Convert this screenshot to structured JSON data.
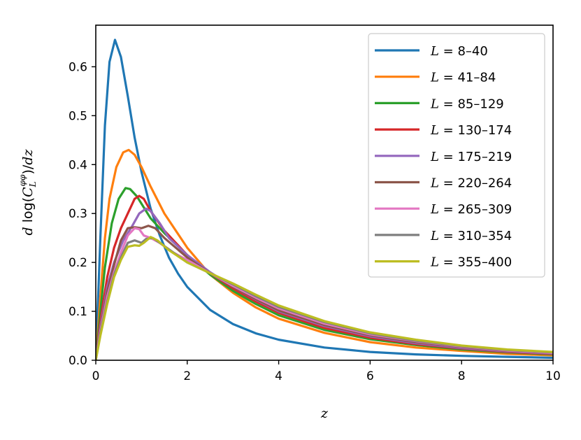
{
  "chart_data": {
    "type": "line",
    "xlabel": "z",
    "ylabel": "d log(C_L^{φφ})/dz",
    "xlim": [
      0,
      10
    ],
    "ylim": [
      0,
      0.685
    ],
    "x_ticks": [
      "0",
      "2",
      "4",
      "6",
      "8",
      "10"
    ],
    "y_ticks": [
      "0.0",
      "0.1",
      "0.2",
      "0.3",
      "0.4",
      "0.5",
      "0.6"
    ],
    "legend_position": "top-right",
    "series": [
      {
        "name": "L = 8–40",
        "color": "#1f77b4",
        "points": [
          [
            0,
            0
          ],
          [
            0.1,
            0.25
          ],
          [
            0.2,
            0.48
          ],
          [
            0.3,
            0.61
          ],
          [
            0.42,
            0.655
          ],
          [
            0.55,
            0.62
          ],
          [
            0.7,
            0.54
          ],
          [
            0.85,
            0.455
          ],
          [
            1.0,
            0.385
          ],
          [
            1.2,
            0.31
          ],
          [
            1.4,
            0.255
          ],
          [
            1.6,
            0.21
          ],
          [
            1.8,
            0.177
          ],
          [
            2,
            0.15
          ],
          [
            2.5,
            0.103
          ],
          [
            3,
            0.074
          ],
          [
            3.5,
            0.055
          ],
          [
            4,
            0.042
          ],
          [
            5,
            0.026
          ],
          [
            6,
            0.017
          ],
          [
            7,
            0.012
          ],
          [
            8,
            0.009
          ],
          [
            9,
            0.007
          ],
          [
            10,
            0.005
          ]
        ]
      },
      {
        "name": "L = 41–84",
        "color": "#ff7f0e",
        "points": [
          [
            0,
            0
          ],
          [
            0.1,
            0.13
          ],
          [
            0.2,
            0.25
          ],
          [
            0.3,
            0.33
          ],
          [
            0.45,
            0.395
          ],
          [
            0.6,
            0.425
          ],
          [
            0.72,
            0.43
          ],
          [
            0.85,
            0.42
          ],
          [
            1.0,
            0.395
          ],
          [
            1.2,
            0.355
          ],
          [
            1.5,
            0.3
          ],
          [
            2,
            0.23
          ],
          [
            2.5,
            0.175
          ],
          [
            3,
            0.138
          ],
          [
            3.5,
            0.108
          ],
          [
            4,
            0.085
          ],
          [
            5,
            0.056
          ],
          [
            6,
            0.037
          ],
          [
            7,
            0.026
          ],
          [
            8,
            0.019
          ],
          [
            9,
            0.013
          ],
          [
            10,
            0.01
          ]
        ]
      },
      {
        "name": "L = 85–129",
        "color": "#2ca02c",
        "points": [
          [
            0,
            0
          ],
          [
            0.1,
            0.1
          ],
          [
            0.2,
            0.19
          ],
          [
            0.35,
            0.28
          ],
          [
            0.5,
            0.33
          ],
          [
            0.65,
            0.352
          ],
          [
            0.75,
            0.35
          ],
          [
            0.9,
            0.335
          ],
          [
            1.0,
            0.32
          ],
          [
            1.2,
            0.29
          ],
          [
            1.5,
            0.26
          ],
          [
            2,
            0.215
          ],
          [
            2.5,
            0.175
          ],
          [
            3,
            0.142
          ],
          [
            3.5,
            0.115
          ],
          [
            4,
            0.092
          ],
          [
            5,
            0.062
          ],
          [
            6,
            0.043
          ],
          [
            7,
            0.031
          ],
          [
            8,
            0.022
          ],
          [
            9,
            0.016
          ],
          [
            10,
            0.012
          ]
        ]
      },
      {
        "name": "L = 130–174",
        "color": "#d62728",
        "points": [
          [
            0,
            0
          ],
          [
            0.1,
            0.08
          ],
          [
            0.25,
            0.17
          ],
          [
            0.4,
            0.23
          ],
          [
            0.55,
            0.27
          ],
          [
            0.7,
            0.3
          ],
          [
            0.85,
            0.33
          ],
          [
            0.95,
            0.336
          ],
          [
            1.05,
            0.33
          ],
          [
            1.2,
            0.305
          ],
          [
            1.5,
            0.265
          ],
          [
            2,
            0.215
          ],
          [
            2.5,
            0.178
          ],
          [
            3,
            0.147
          ],
          [
            3.5,
            0.12
          ],
          [
            4,
            0.097
          ],
          [
            5,
            0.066
          ],
          [
            6,
            0.046
          ],
          [
            7,
            0.033
          ],
          [
            8,
            0.024
          ],
          [
            9,
            0.017
          ],
          [
            10,
            0.013
          ]
        ]
      },
      {
        "name": "L = 175–219",
        "color": "#9467bd",
        "points": [
          [
            0,
            0
          ],
          [
            0.1,
            0.07
          ],
          [
            0.25,
            0.15
          ],
          [
            0.4,
            0.2
          ],
          [
            0.6,
            0.245
          ],
          [
            0.8,
            0.275
          ],
          [
            0.95,
            0.3
          ],
          [
            1.1,
            0.31
          ],
          [
            1.2,
            0.305
          ],
          [
            1.4,
            0.28
          ],
          [
            1.6,
            0.25
          ],
          [
            2,
            0.215
          ],
          [
            2.5,
            0.18
          ],
          [
            3,
            0.15
          ],
          [
            3.5,
            0.124
          ],
          [
            4,
            0.1
          ],
          [
            5,
            0.07
          ],
          [
            6,
            0.049
          ],
          [
            7,
            0.035
          ],
          [
            8,
            0.025
          ],
          [
            9,
            0.018
          ],
          [
            10,
            0.014
          ]
        ]
      },
      {
        "name": "L = 220–264",
        "color": "#8c564b",
        "points": [
          [
            0,
            0
          ],
          [
            0.1,
            0.065
          ],
          [
            0.25,
            0.14
          ],
          [
            0.4,
            0.195
          ],
          [
            0.55,
            0.245
          ],
          [
            0.7,
            0.27
          ],
          [
            0.85,
            0.272
          ],
          [
            1.0,
            0.27
          ],
          [
            1.15,
            0.275
          ],
          [
            1.3,
            0.27
          ],
          [
            1.5,
            0.25
          ],
          [
            2,
            0.21
          ],
          [
            2.5,
            0.178
          ],
          [
            3,
            0.15
          ],
          [
            3.5,
            0.125
          ],
          [
            4,
            0.102
          ],
          [
            5,
            0.072
          ],
          [
            6,
            0.051
          ],
          [
            7,
            0.037
          ],
          [
            8,
            0.027
          ],
          [
            9,
            0.019
          ],
          [
            10,
            0.015
          ]
        ]
      },
      {
        "name": "L = 265–309",
        "color": "#e377c2",
        "points": [
          [
            0,
            0
          ],
          [
            0.1,
            0.06
          ],
          [
            0.25,
            0.13
          ],
          [
            0.4,
            0.18
          ],
          [
            0.55,
            0.22
          ],
          [
            0.7,
            0.255
          ],
          [
            0.85,
            0.27
          ],
          [
            0.95,
            0.268
          ],
          [
            1.05,
            0.255
          ],
          [
            1.2,
            0.25
          ],
          [
            1.4,
            0.24
          ],
          [
            1.7,
            0.22
          ],
          [
            2,
            0.205
          ],
          [
            2.5,
            0.178
          ],
          [
            3,
            0.152
          ],
          [
            3.5,
            0.128
          ],
          [
            4,
            0.106
          ],
          [
            5,
            0.075
          ],
          [
            6,
            0.053
          ],
          [
            7,
            0.039
          ],
          [
            8,
            0.028
          ],
          [
            9,
            0.02
          ],
          [
            10,
            0.015
          ]
        ]
      },
      {
        "name": "L = 310–354",
        "color": "#7f7f7f",
        "points": [
          [
            0,
            0
          ],
          [
            0.1,
            0.055
          ],
          [
            0.25,
            0.12
          ],
          [
            0.4,
            0.175
          ],
          [
            0.55,
            0.21
          ],
          [
            0.7,
            0.24
          ],
          [
            0.85,
            0.245
          ],
          [
            1.0,
            0.24
          ],
          [
            1.1,
            0.248
          ],
          [
            1.25,
            0.25
          ],
          [
            1.4,
            0.24
          ],
          [
            1.7,
            0.22
          ],
          [
            2,
            0.2
          ],
          [
            2.5,
            0.178
          ],
          [
            3,
            0.155
          ],
          [
            3.5,
            0.131
          ],
          [
            4,
            0.109
          ],
          [
            5,
            0.078
          ],
          [
            6,
            0.055
          ],
          [
            7,
            0.04
          ],
          [
            8,
            0.029
          ],
          [
            9,
            0.021
          ],
          [
            10,
            0.016
          ]
        ]
      },
      {
        "name": "L = 355–400",
        "color": "#bcbd22",
        "points": [
          [
            0,
            0
          ],
          [
            0.1,
            0.05
          ],
          [
            0.25,
            0.115
          ],
          [
            0.4,
            0.17
          ],
          [
            0.55,
            0.205
          ],
          [
            0.7,
            0.232
          ],
          [
            0.85,
            0.235
          ],
          [
            0.95,
            0.234
          ],
          [
            1.05,
            0.24
          ],
          [
            1.2,
            0.252
          ],
          [
            1.35,
            0.245
          ],
          [
            1.6,
            0.225
          ],
          [
            2,
            0.2
          ],
          [
            2.5,
            0.178
          ],
          [
            3,
            0.157
          ],
          [
            3.5,
            0.134
          ],
          [
            4,
            0.112
          ],
          [
            5,
            0.08
          ],
          [
            6,
            0.057
          ],
          [
            7,
            0.042
          ],
          [
            8,
            0.03
          ],
          [
            9,
            0.022
          ],
          [
            10,
            0.017
          ]
        ]
      }
    ]
  }
}
